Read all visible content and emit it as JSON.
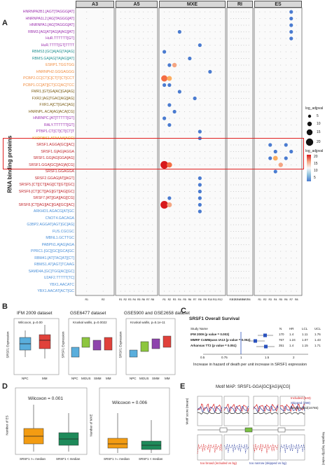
{
  "panels": {
    "a": "A",
    "b": "B",
    "c": "C",
    "d": "D",
    "e": "E"
  },
  "panel_a": {
    "y_axis_title": "RNA binding proteins",
    "events": [
      "A3",
      "A5",
      "MXE",
      "RI",
      "ES"
    ],
    "regions": {
      "A3": [
        "R1",
        "R2"
      ],
      "A5": [
        "R1",
        "R2",
        "R3",
        "R4",
        "R5",
        "R6",
        "R7",
        "R8"
      ],
      "MXE": [
        "R1",
        "R2",
        "R3",
        "R4",
        "R5",
        "R6",
        "R7",
        "R8",
        "R9",
        "R10",
        "R11",
        "R12"
      ],
      "RI": [
        "R1",
        "R2",
        "R3",
        "R4",
        "R5",
        "R6",
        "R7",
        "R8"
      ],
      "ES": [
        "R1",
        "R2",
        "R3",
        "R4",
        "R5",
        "R6",
        "R7",
        "R8"
      ]
    },
    "rbps": [
      {
        "name": "HNRNPA2B1.[AGT]TAGGG[AT]",
        "color": "#9b2fae"
      },
      {
        "name": "HNRNPA1L2.[AG]TAGGG[AT]",
        "color": "#9b2fae"
      },
      {
        "name": "HNRNPA1.[AG]TAGGG[AT]",
        "color": "#9b2fae"
      },
      {
        "name": "RBM3.[AG]AT[AG]A[AG][AT]",
        "color": "#9b2fae"
      },
      {
        "name": "HuR.TTTTTT[GT]",
        "color": "#9b2fae"
      },
      {
        "name": "HuR.TTTT[GT]TTTT",
        "color": "#9b2fae"
      },
      {
        "name": "RBMS3.[GC]A[AG]TA[AG]",
        "color": "#1f8f8f"
      },
      {
        "name": "RBMS.GA[AG]TA[AG][AT]",
        "color": "#1f8f8f"
      },
      {
        "name": "ESRP1.TGGTGG",
        "color": "#f08a3c"
      },
      {
        "name": "HNRNPH2.GGGAGGG",
        "color": "#f08a3c"
      },
      {
        "name": "PCBP2.CC[CT]C[CT]T[CT]CCT",
        "color": "#f08a3c"
      },
      {
        "name": "PCBP1.CC[AT][CT]CC[AC]TCC",
        "color": "#f08a3c"
      },
      {
        "name": "FMR1.[GT]GA[AC]GA[AG]",
        "color": "#7a5b12"
      },
      {
        "name": "FXR2.[AG]TGAC[AG][AG]",
        "color": "#7a5b12"
      },
      {
        "name": "FXR1.A[CT]GAC[AG]",
        "color": "#7a5b12"
      },
      {
        "name": "HNRNPL.ACA[AG]ACA[CG]",
        "color": "#7a5b12"
      },
      {
        "name": "HNRNPC.[AT]TTTTT[GT]",
        "color": "#9b2fae"
      },
      {
        "name": "RALY.TTTTTT[GT]",
        "color": "#9b2fae"
      },
      {
        "name": "PTBP1.CT[CT]CT[CT]T",
        "color": "#9b2fae"
      },
      {
        "name": "KHDRBS1.ATAAAA[ACG]",
        "color": "#e6a500"
      },
      {
        "name": "SRSF1.AGGA[GC][AC]",
        "color": "#c1272d"
      },
      {
        "name": "SRSF1.G[AG]AGGA",
        "color": "#c1272d"
      },
      {
        "name": "SRSF1.GG[AG]GGA[AG]",
        "color": "#c1272d"
      },
      {
        "name": "SRSF1.GGA[GC][AG]A[CG]",
        "color": "#c1272d"
      },
      {
        "name": "SRSF1.GGAGGA",
        "color": "#c1272d"
      },
      {
        "name": "SRSF2.GGAG[AT][AGT]",
        "color": "#c1272d"
      },
      {
        "name": "SRSF5.[CT][CT][AG][CT][GT][GC]",
        "color": "#c1272d"
      },
      {
        "name": "SRSF6.[CT][CT][AG][GT][AG][GC]",
        "color": "#c1272d"
      },
      {
        "name": "SRSF7.[AT][GA][AG][CG]",
        "color": "#c1272d"
      },
      {
        "name": "SRSF8.[CT][AG][AC][GA][GC][AC]",
        "color": "#c1272d"
      },
      {
        "name": "ARKHD1.AGACG[AT]GC",
        "color": "#4a8fd8"
      },
      {
        "name": "CNOT4.GACAGA",
        "color": "#4a8fd8"
      },
      {
        "name": "G3BP2.AGGAT[AGT]GC[AG]",
        "color": "#4a8fd8"
      },
      {
        "name": "FUS.CGCGC",
        "color": "#4a8fd8"
      },
      {
        "name": "MBNL1.GCTTGC",
        "color": "#4a8fd8"
      },
      {
        "name": "PABPN1.A[AG]AGA",
        "color": "#4a8fd8"
      },
      {
        "name": "PPRC1.[GC][GC][GCA]GC",
        "color": "#4a8fd8"
      },
      {
        "name": "RBM41.[AT]TAC[AT][CT]",
        "color": "#4a8fd8"
      },
      {
        "name": "RBMS1.AT[AGT]TCAAG",
        "color": "#4a8fd8"
      },
      {
        "name": "SAMD4A.[GC]TGG[AC][GC]",
        "color": "#4a8fd8"
      },
      {
        "name": "U2AF2.TTTTT[TC]",
        "color": "#4a8fd8"
      },
      {
        "name": "YBX1.AACATC",
        "color": "#4a8fd8"
      },
      {
        "name": "YBX1.AACAT[ACT]GC",
        "color": "#4a8fd8"
      }
    ],
    "legend": {
      "size_title": "log_adjpval",
      "size_values": [
        "5",
        "10",
        "15",
        "20"
      ],
      "color_title": "log_adjpval",
      "color_values": [
        "20",
        "15",
        "10",
        "5"
      ],
      "low_color": "#5b7fc9",
      "high_color": "#d7191c"
    }
  },
  "panel_b": {
    "plots": [
      {
        "title": "IFM 2009 dataset",
        "stat": "Wilcoxon, p=0.00",
        "ylabel": "SRSF1 Expression",
        "groups": [
          "NPC",
          "MM"
        ]
      },
      {
        "title": "GSE6477 dataset",
        "stat": "Kruskal wallis, p=0.0022",
        "ylabel": "SRSF1 Expression",
        "groups": [
          "NPC",
          "MGUS",
          "SMM",
          "MM"
        ]
      },
      {
        "title": "GSE5900 and GSE2658 dataset",
        "stat": "Kruskal wallis, p=5.1e-11",
        "ylabel": "SRSF1 Expression",
        "groups": [
          "NPC",
          "MGUS",
          "SMM",
          "MM"
        ]
      }
    ]
  },
  "panel_c": {
    "title": "SRSF1 Overall Survival",
    "columns": [
      "Study Name",
      "N",
      "HR",
      "LCL",
      "UCL"
    ],
    "rows": [
      {
        "name": "IFM 2009 (p value = 0.003)",
        "n": "170",
        "hr": "1.4",
        "lcl": "1.11",
        "ucl": "1.76"
      },
      {
        "name": "MMRF CoMMpass IA13 (p value = 0.052)",
        "n": "767",
        "hr": "1.24",
        "lcl": "1.07",
        "ucl": "1.43"
      },
      {
        "name": "Arkansas TT2 (p value = 0.051)",
        "n": "351",
        "hr": "1.4",
        "lcl": "1.15",
        "ucl": "1.71"
      }
    ],
    "ticks": [
      "0.5",
      "0.75",
      "1",
      "1.5",
      "2"
    ],
    "xlabel": "Increase in hazard of death per unit increase in SRSF1 expression"
  },
  "panel_d": {
    "plots": [
      {
        "stat": "Wilcoxon = 0.001",
        "ylabel": "Number of ES",
        "groups": [
          "SRSF1 >= median",
          "SRSF1 < median"
        ]
      },
      {
        "stat": "Wilcoxon = 0.006",
        "ylabel": "Number of MXE",
        "groups": [
          "SRSF1 >= median",
          "SRSF1 < median"
        ]
      }
    ]
  },
  "panel_e": {
    "title": "Motif MAP: SRSF1-GGA[GC][AG]A[CG]",
    "ylabel": "Motif score (mean)",
    "ylabel_right": "Negative log10(p value)",
    "legend": [
      "Included (543)",
      "Skipped (299)",
      "Background(16765)"
    ],
    "bottom_labels": [
      "too broad (included vs bg)",
      "too narrow (skipped vs bg)"
    ],
    "colors": {
      "included": "#d7191c",
      "skipped": "#2c3e9e",
      "background": "#222222"
    }
  }
}
